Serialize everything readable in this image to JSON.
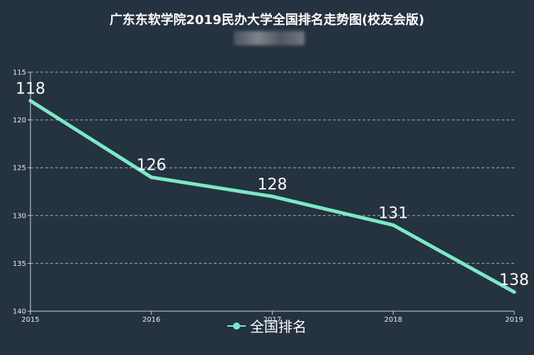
{
  "chart_data": {
    "type": "line",
    "title": "广东东软学院2019民办大学全国排名走势图(校友会版)",
    "categories": [
      "2015",
      "2016",
      "2017",
      "2018",
      "2019"
    ],
    "series": [
      {
        "name": "全国排名",
        "values": [
          118,
          126,
          128,
          131,
          138
        ],
        "color": "#7be8c6"
      }
    ],
    "y_ticks": [
      "115",
      "120",
      "125",
      "130",
      "135",
      "140"
    ],
    "ylim": [
      115,
      140
    ],
    "y_inverted": true,
    "grid": "horizontal-dashed",
    "legend_position": "bottom-center",
    "background": "#253340"
  }
}
